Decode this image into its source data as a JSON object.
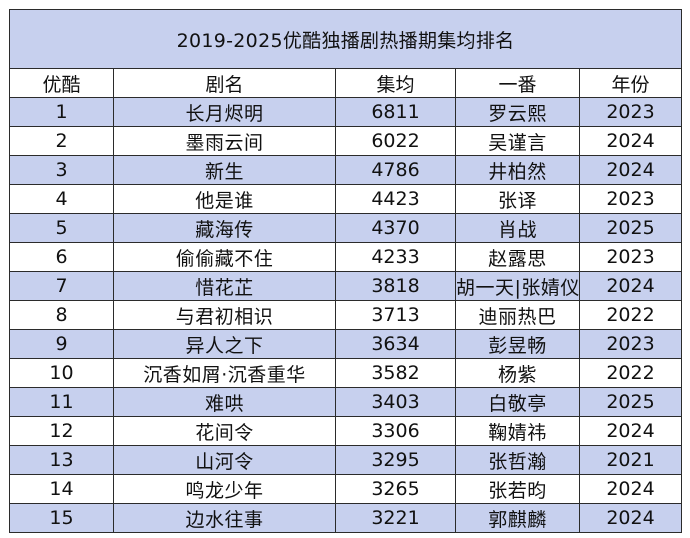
{
  "title": "2019-2025优酷独播剧热播期集均排名",
  "headers": {
    "rank": "优酷",
    "name": "剧名",
    "episodes": "集均",
    "actor": "一番",
    "year": "年份"
  },
  "rows": [
    {
      "rank": "1",
      "name": "长月烬明",
      "episodes": "6811",
      "actor": "罗云熙",
      "year": "2023"
    },
    {
      "rank": "2",
      "name": "墨雨云间",
      "episodes": "6022",
      "actor": "吴谨言",
      "year": "2024"
    },
    {
      "rank": "3",
      "name": "新生",
      "episodes": "4786",
      "actor": "井柏然",
      "year": "2024"
    },
    {
      "rank": "4",
      "name": "他是谁",
      "episodes": "4423",
      "actor": "张译",
      "year": "2023"
    },
    {
      "rank": "5",
      "name": "藏海传",
      "episodes": "4370",
      "actor": "肖战",
      "year": "2025"
    },
    {
      "rank": "6",
      "name": "偷偷藏不住",
      "episodes": "4233",
      "actor": "赵露思",
      "year": "2023"
    },
    {
      "rank": "7",
      "name": "惜花芷",
      "episodes": "3818",
      "actor": "胡一天|张婧仪",
      "year": "2024"
    },
    {
      "rank": "8",
      "name": "与君初相识",
      "episodes": "3713",
      "actor": "迪丽热巴",
      "year": "2022"
    },
    {
      "rank": "9",
      "name": "异人之下",
      "episodes": "3634",
      "actor": "彭昱畅",
      "year": "2023"
    },
    {
      "rank": "10",
      "name": "沉香如屑·沉香重华",
      "episodes": "3582",
      "actor": "杨紫",
      "year": "2022"
    },
    {
      "rank": "11",
      "name": "难哄",
      "episodes": "3403",
      "actor": "白敬亭",
      "year": "2025"
    },
    {
      "rank": "12",
      "name": "花间令",
      "episodes": "3306",
      "actor": "鞠婧祎",
      "year": "2024"
    },
    {
      "rank": "13",
      "name": "山河令",
      "episodes": "3295",
      "actor": "张哲瀚",
      "year": "2021"
    },
    {
      "rank": "14",
      "name": "鸣龙少年",
      "episodes": "3265",
      "actor": "张若昀",
      "year": "2024"
    },
    {
      "rank": "15",
      "name": "边水往事",
      "episodes": "3221",
      "actor": "郭麒麟",
      "year": "2024"
    }
  ],
  "colors": {
    "band": "#c7d0ee",
    "white": "#ffffff",
    "border": "#2b2b2b"
  }
}
